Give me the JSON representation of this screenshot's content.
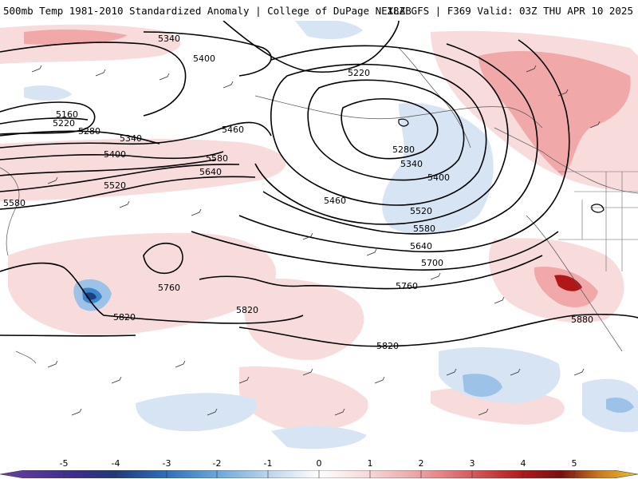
{
  "header": {
    "title_left": "500mb Temp 1981-2010 Standardized Anomaly | College of DuPage NEXLAB",
    "title_right": "18Z GFS | F369 Valid: 03Z THU APR 10 2025"
  },
  "colorbar": {
    "labels": [
      "-5",
      "-4",
      "-3",
      "-2",
      "-1",
      "0",
      "1",
      "2",
      "3",
      "4",
      "5"
    ],
    "colors": [
      "#6a3fa0",
      "#1f3a7a",
      "#2f6fb8",
      "#6aa7dc",
      "#b9d4ef",
      "#ffffff",
      "#f7d6d6",
      "#ee9f9f",
      "#d95a5a",
      "#b01818",
      "#f2c230"
    ]
  },
  "map": {
    "contour_labels": [
      "5340",
      "5400",
      "5220",
      "5160",
      "5220",
      "5280",
      "5340",
      "5400",
      "5460",
      "5520",
      "5580",
      "5640",
      "5580",
      "5280",
      "5340",
      "5400",
      "5460",
      "5520",
      "5580",
      "5640",
      "5700",
      "5760",
      "5760",
      "5820",
      "5820",
      "5820",
      "5880"
    ],
    "colors": {
      "warm_light": "#f8dcdc",
      "warm_medium": "#f0a8a8",
      "warm_strong": "#d85050",
      "warm_deep": "#9a1010",
      "cool_light": "#d6e4f4",
      "cool_medium": "#9cc2e8",
      "cool_strong": "#3d86cc",
      "cool_deep": "#1c3f80"
    }
  }
}
